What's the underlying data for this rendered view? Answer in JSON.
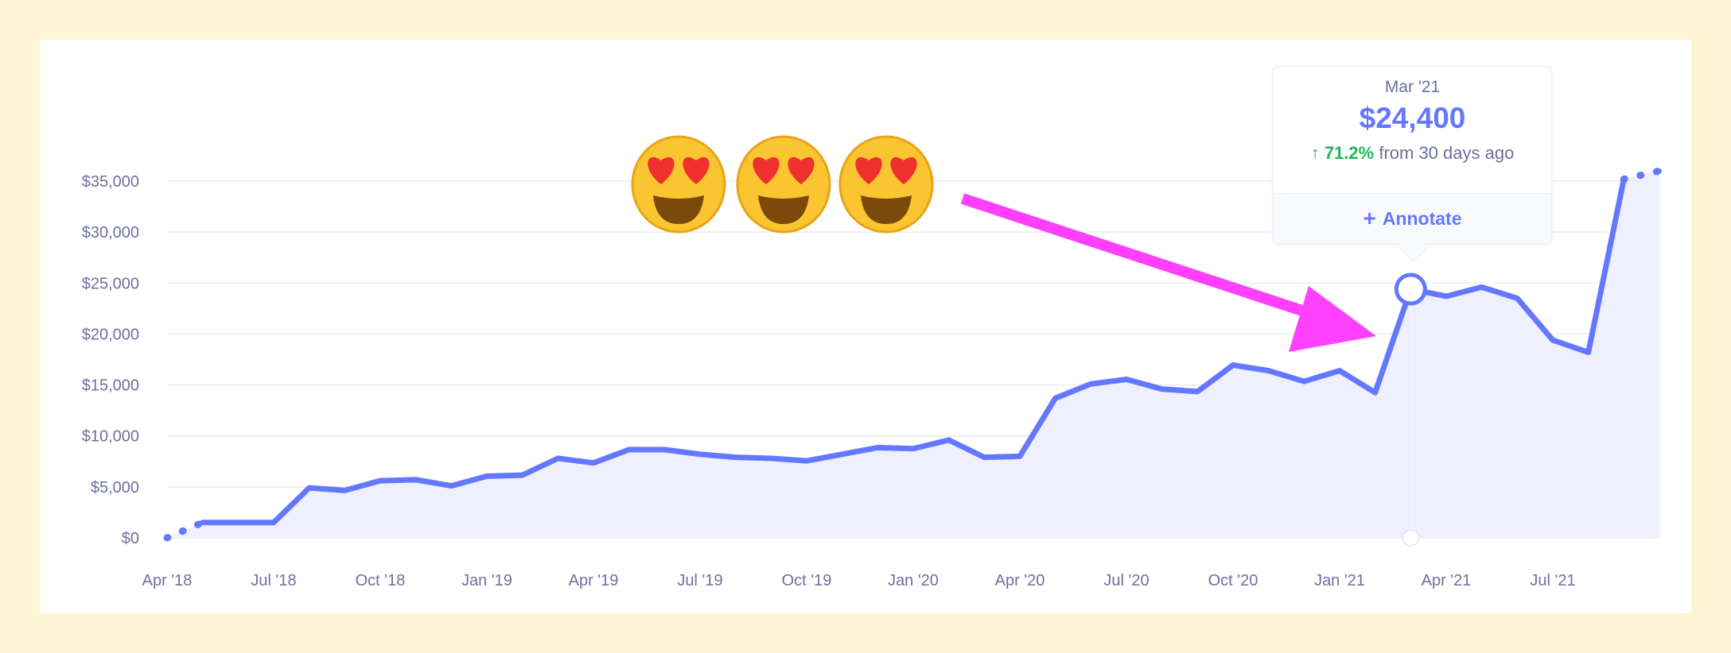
{
  "colors": {
    "background": "#FEF5D4",
    "line": "#6478FF",
    "area": "#EEF0FD",
    "grid": "#F0F0F5",
    "arrow": "#FF40FF",
    "up": "#1DB954",
    "axis_text": "#6E6F9E"
  },
  "decorations": {
    "emoji": [
      "smiling-face-with-heart-eyes",
      "smiling-face-with-heart-eyes",
      "smiling-face-with-heart-eyes"
    ],
    "arrow": "magenta-arrow pointing at Mar '21 point"
  },
  "tooltip": {
    "date": "Mar '21",
    "value": "$24,400",
    "arrow_icon": "↑",
    "change_pct": "71.2%",
    "change_text": "from 30 days ago",
    "annotate_icon": "+",
    "annotate_label": "Annotate"
  },
  "chart_data": {
    "type": "area",
    "title": "",
    "xlabel": "",
    "ylabel": "",
    "ylim": [
      0,
      35000
    ],
    "grid": true,
    "yticks": [
      0,
      5000,
      10000,
      15000,
      20000,
      25000,
      30000,
      35000
    ],
    "ytick_labels": [
      "$0",
      "$5,000",
      "$10,000",
      "$15,000",
      "$20,000",
      "$25,000",
      "$30,000",
      "$35,000"
    ],
    "xtick_labels": [
      "Apr '18",
      "Jul '18",
      "Oct '18",
      "Jan '19",
      "Apr '19",
      "Jul '19",
      "Oct '19",
      "Jan '20",
      "Apr '20",
      "Jul '20",
      "Oct '20",
      "Jan '21",
      "Apr '21",
      "Jul '21"
    ],
    "x": [
      "Apr '18",
      "May '18",
      "Jun '18",
      "Jul '18",
      "Aug '18",
      "Sep '18",
      "Oct '18",
      "Nov '18",
      "Dec '18",
      "Jan '19",
      "Feb '19",
      "Mar '19",
      "Apr '19",
      "May '19",
      "Jun '19",
      "Jul '19",
      "Aug '19",
      "Sep '19",
      "Oct '19",
      "Nov '19",
      "Dec '19",
      "Jan '20",
      "Feb '20",
      "Mar '20",
      "Apr '20",
      "May '20",
      "Jun '20",
      "Jul '20",
      "Aug '20",
      "Sep '20",
      "Oct '20",
      "Nov '20",
      "Dec '20",
      "Jan '21",
      "Feb '21",
      "Mar '21",
      "Apr '21",
      "May '21",
      "Jun '21",
      "Jul '21",
      "Aug '21",
      "Sep '21",
      "Oct '21"
    ],
    "values": [
      0,
      1500,
      1500,
      1500,
      4900,
      4650,
      5600,
      5700,
      5100,
      6050,
      6150,
      7800,
      7350,
      8650,
      8650,
      8200,
      7900,
      7800,
      7550,
      8200,
      8850,
      8750,
      9600,
      7900,
      8000,
      13700,
      15100,
      15550,
      14600,
      14350,
      16950,
      16400,
      15350,
      16400,
      14250,
      24400,
      23700,
      24600,
      23500,
      19400,
      18200,
      35200,
      36000
    ],
    "dotted_segments": [
      [
        "Apr '18",
        "May '18"
      ],
      [
        "Sep '21",
        "Oct '21"
      ]
    ],
    "highlighted": "Mar '21"
  }
}
